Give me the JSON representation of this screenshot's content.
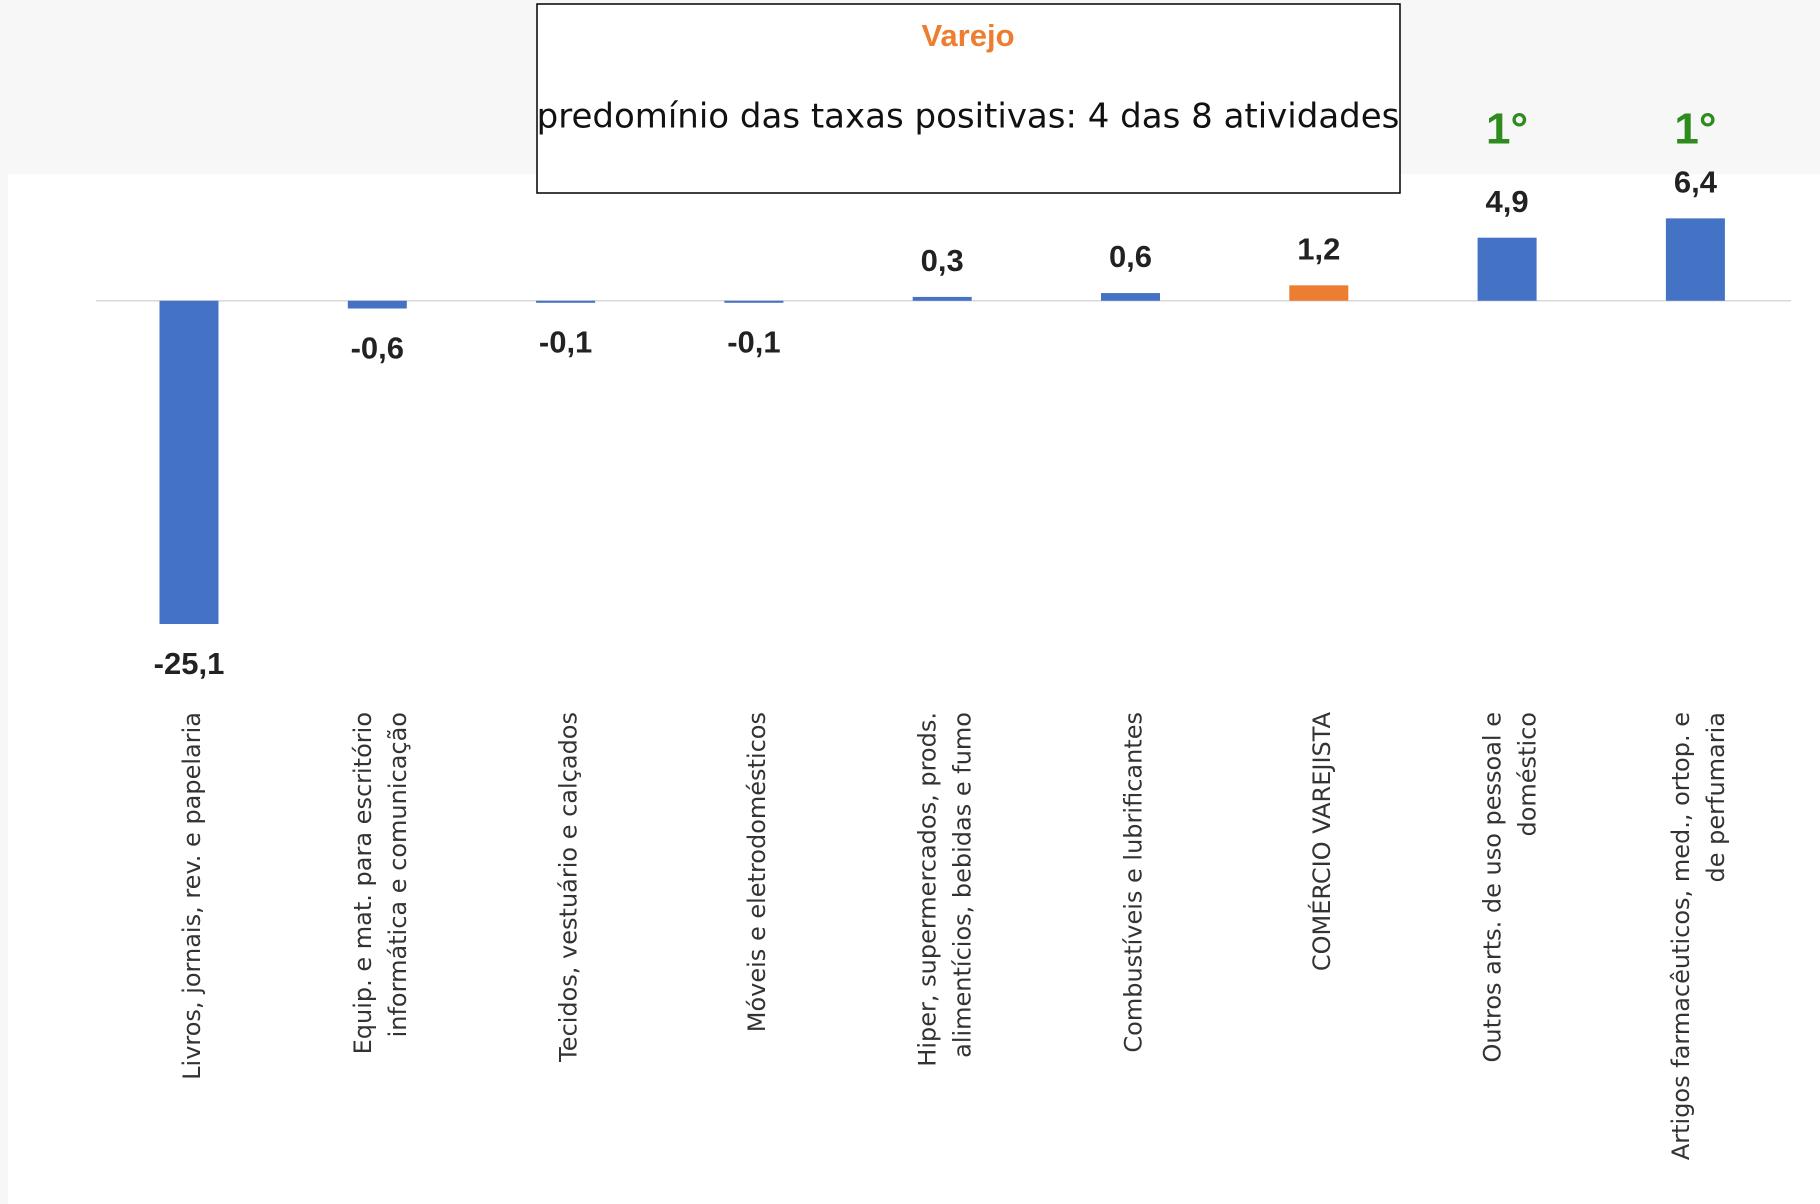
{
  "chart_data": {
    "type": "bar",
    "categories": [
      "Livros, jornais, rev. e papelaria",
      "Equip. e mat. para escritório\ninformática e comunicação",
      "Tecidos, vestuário e calçados",
      "Móveis e eletrodomésticos",
      "Hiper, supermercados, prods.\nalimentícios, bebidas e fumo",
      "Combustíveis e lubrificantes",
      "COMÉRCIO VAREJISTA",
      "Outros arts. de uso pessoal e\ndoméstico",
      "Artigos farmacêuticos, med., ortop. e\nde perfumaria"
    ],
    "values": [
      -25.1,
      -0.6,
      -0.1,
      -0.1,
      0.3,
      0.6,
      1.2,
      4.9,
      6.4
    ],
    "value_labels": [
      "-25,1",
      "-0,6",
      "-0,1",
      "-0,1",
      "0,3",
      "0,6",
      "1,2",
      "4,9",
      "6,4"
    ],
    "colors": [
      "#4472c4",
      "#4472c4",
      "#4472c4",
      "#4472c4",
      "#4472c4",
      "#4472c4",
      "#ed7d31",
      "#4472c4",
      "#4472c4"
    ],
    "ylim": [
      -31,
      10
    ],
    "annotations": {
      "box_title": "Varejo",
      "box_text": "predomínio das taxas positivas: 4 das 8 atividades",
      "rank_labels": [
        {
          "index": 7,
          "text": "1°"
        },
        {
          "index": 8,
          "text": "1°"
        }
      ]
    }
  }
}
